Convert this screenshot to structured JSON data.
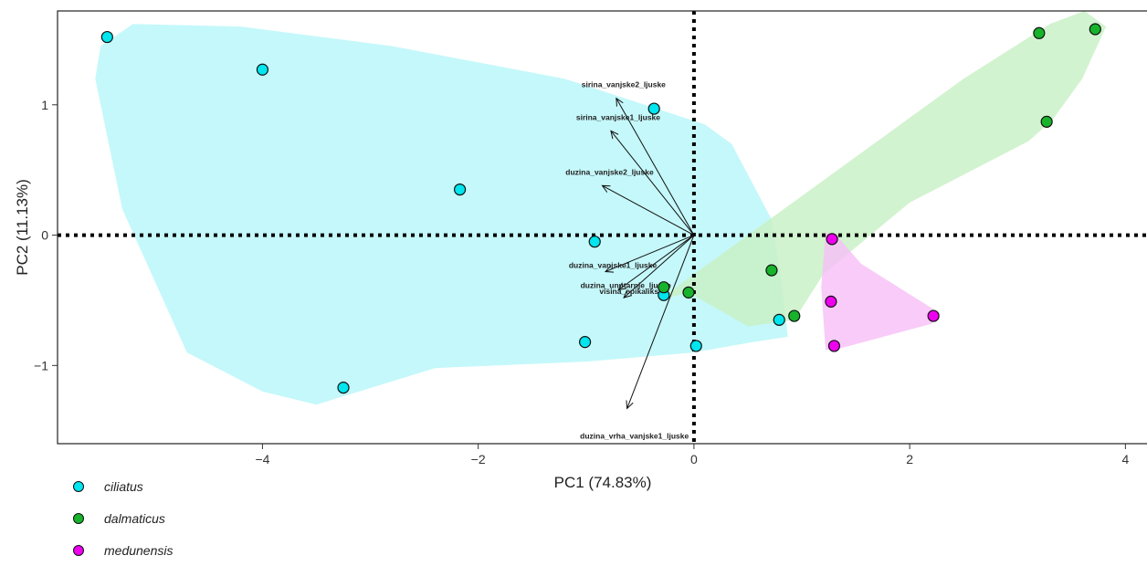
{
  "chart_data": {
    "type": "scatter",
    "xlabel": "PC1 (74.83%)",
    "ylabel": "PC2 (11.13%)",
    "xlim": [
      -5.9,
      4.2
    ],
    "ylim": [
      -1.6,
      1.72
    ],
    "x_ticks": [
      -4,
      -2,
      0,
      2,
      4
    ],
    "y_ticks": [
      -1,
      0,
      1
    ],
    "tick_labels_x": [
      "−4",
      "−2",
      "0",
      "2",
      "4"
    ],
    "tick_labels_y": [
      "−1",
      "0",
      "1"
    ],
    "grid": false,
    "reference_lines": [
      {
        "axis": "x",
        "value": 0,
        "style": "dotted"
      },
      {
        "axis": "y",
        "value": 0,
        "style": "dotted"
      }
    ],
    "legend_position": "bottom-left",
    "series": [
      {
        "name": "ciliatus",
        "color": "#00e5ee",
        "hull_color": "#b8f6f9",
        "points": [
          [
            -5.44,
            1.52
          ],
          [
            -4.0,
            1.27
          ],
          [
            -2.17,
            0.35
          ],
          [
            -0.37,
            0.97
          ],
          [
            -0.92,
            -0.05
          ],
          [
            -1.01,
            -0.82
          ],
          [
            -3.25,
            -1.17
          ],
          [
            -0.28,
            -0.46
          ],
          [
            0.02,
            -0.85
          ],
          [
            0.79,
            -0.65
          ]
        ],
        "hull": [
          [
            -5.5,
            1.45
          ],
          [
            -5.2,
            1.62
          ],
          [
            -4.2,
            1.6
          ],
          [
            -2.8,
            1.45
          ],
          [
            -1.2,
            1.2
          ],
          [
            0.1,
            0.85
          ],
          [
            0.35,
            0.7
          ],
          [
            0.72,
            0.12
          ],
          [
            0.82,
            -0.4
          ],
          [
            0.87,
            -0.78
          ],
          [
            0.55,
            -0.82
          ],
          [
            0.0,
            -0.9
          ],
          [
            -1.0,
            -0.97
          ],
          [
            -2.4,
            -1.02
          ],
          [
            -3.5,
            -1.3
          ],
          [
            -4.0,
            -1.2
          ],
          [
            -4.7,
            -0.9
          ],
          [
            -5.3,
            0.2
          ],
          [
            -5.55,
            1.2
          ]
        ]
      },
      {
        "name": "dalmaticus",
        "color": "#16b32b",
        "hull_color": "#c8f0c4",
        "points": [
          [
            3.2,
            1.55
          ],
          [
            3.72,
            1.58
          ],
          [
            3.27,
            0.87
          ],
          [
            0.72,
            -0.27
          ],
          [
            0.93,
            -0.62
          ],
          [
            -0.28,
            -0.4
          ],
          [
            -0.05,
            -0.44
          ]
        ],
        "hull": [
          [
            -0.05,
            -0.44
          ],
          [
            -0.33,
            -0.5
          ],
          [
            0.0,
            -0.3
          ],
          [
            1.0,
            0.3
          ],
          [
            2.5,
            1.2
          ],
          [
            3.3,
            1.62
          ],
          [
            3.62,
            1.72
          ],
          [
            3.82,
            1.6
          ],
          [
            3.6,
            1.2
          ],
          [
            3.32,
            0.88
          ],
          [
            3.1,
            0.72
          ],
          [
            2.0,
            0.25
          ],
          [
            1.2,
            -0.3
          ],
          [
            0.93,
            -0.65
          ],
          [
            0.5,
            -0.7
          ]
        ]
      },
      {
        "name": "medunensis",
        "color": "#ee00ee",
        "hull_color": "#f7c0f7",
        "points": [
          [
            1.28,
            -0.03
          ],
          [
            1.27,
            -0.51
          ],
          [
            1.3,
            -0.85
          ],
          [
            2.22,
            -0.62
          ]
        ],
        "hull": [
          [
            1.22,
            0.02
          ],
          [
            1.32,
            0.0
          ],
          [
            1.55,
            -0.22
          ],
          [
            2.28,
            -0.6
          ],
          [
            2.2,
            -0.68
          ],
          [
            1.35,
            -0.87
          ],
          [
            1.22,
            -0.88
          ],
          [
            1.18,
            -0.4
          ]
        ]
      }
    ],
    "loadings": [
      {
        "label": "sirina_vanjske2_ljuske",
        "x": -0.72,
        "y": 1.05
      },
      {
        "label": "sirina_vanjske1_ljuske",
        "x": -0.77,
        "y": 0.8
      },
      {
        "label": "duzina_vanjske2_ljuske",
        "x": -0.85,
        "y": 0.38
      },
      {
        "label": "duzina_vanjske1_ljuske",
        "x": -0.82,
        "y": -0.28
      },
      {
        "label": "duzina_unutarnje_ljuske",
        "x": -0.7,
        "y": -0.42
      },
      {
        "label": "visina_epikalikse",
        "x": -0.65,
        "y": -0.48
      },
      {
        "label": "duzina_vrha_vanjske1_ljuske",
        "x": -0.62,
        "y": -1.33
      }
    ]
  }
}
